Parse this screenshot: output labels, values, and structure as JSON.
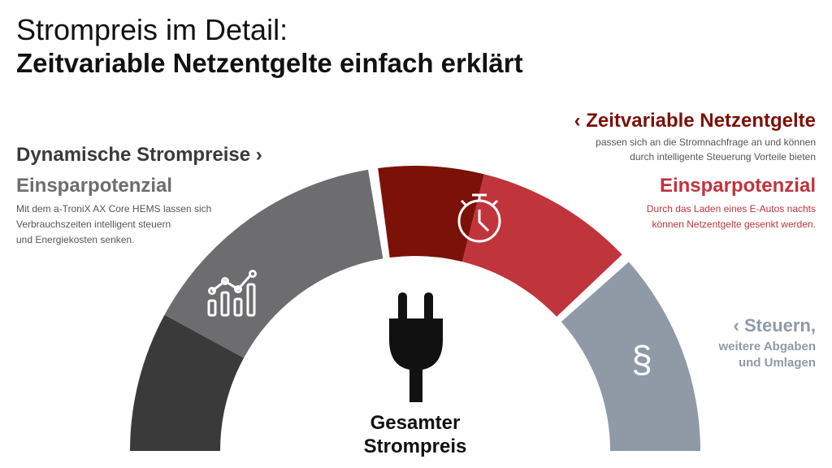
{
  "header": {
    "title_line1": "Strompreis im Detail:",
    "title_line2": "Zeitvariable Netzentgelte einfach erklärt"
  },
  "left": {
    "heading": "Dynamische Strompreise ›",
    "subheading": "Einsparpotenzial",
    "body": [
      "Mit dem a-TroniX AX Core HEMS lassen sich",
      "Verbrauchszeiten intelligent steuern",
      "und Energiekosten senken."
    ]
  },
  "right": {
    "heading": "‹ Zeitvariable Netzentgelte",
    "body": [
      "passen sich an die Stromnachfrage an und können",
      "durch intelligente Steuerung Vorteile bieten"
    ],
    "subheading": "Einsparpotenzial",
    "body2": [
      "Durch das Laden eines E-Autos nachts",
      "können Netzentgelte gesenkt werden."
    ]
  },
  "steuern": {
    "heading": "‹ Steuern,",
    "lines": [
      "weitere Abgaben",
      "und Umlagen"
    ],
    "icon": "§"
  },
  "center": {
    "lines": [
      "Gesamter",
      "Strompreis"
    ]
  }
}
